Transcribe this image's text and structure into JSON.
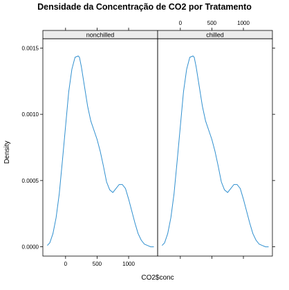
{
  "chart_data": {
    "type": "line",
    "title": "Densidade da Concentração de CO2 por Tratamento",
    "xlabel": "CO2$conc",
    "ylabel": "Density",
    "xlim": [
      -360,
      1460
    ],
    "ylim": [
      -7e-05,
      0.00157
    ],
    "x_ticks": [
      0,
      500,
      1000
    ],
    "y_ticks": [
      0.0,
      0.0005,
      0.001,
      0.0015
    ],
    "y_tick_labels": [
      "0.0000",
      "0.0005",
      "0.0010",
      "0.0015"
    ],
    "line_color": "#2f8fcf",
    "panels": [
      {
        "strip_label": "nonchilled",
        "x": [
          -290,
          -250,
          -200,
          -150,
          -100,
          -50,
          0,
          50,
          100,
          150,
          200,
          220,
          250,
          300,
          350,
          400,
          450,
          500,
          550,
          600,
          650,
          700,
          750,
          800,
          850,
          900,
          950,
          1000,
          1050,
          1100,
          1150,
          1200,
          1250,
          1300,
          1350,
          1400
        ],
        "y": [
          1e-05,
          3e-05,
          0.0001,
          0.00022,
          0.0004,
          0.00065,
          0.00091,
          0.00117,
          0.00134,
          0.00143,
          0.00144,
          0.00143,
          0.00136,
          0.00121,
          0.00106,
          0.00095,
          0.00088,
          0.00081,
          0.00072,
          0.00061,
          0.00049,
          0.00043,
          0.00041,
          0.00044,
          0.00047,
          0.00047,
          0.00044,
          0.00036,
          0.00027,
          0.00018,
          0.0001,
          5e-05,
          2e-05,
          1e-05,
          0.0,
          0.0
        ]
      },
      {
        "strip_label": "chilled",
        "x": [
          -290,
          -250,
          -200,
          -150,
          -100,
          -50,
          0,
          50,
          100,
          150,
          200,
          220,
          250,
          300,
          350,
          400,
          450,
          500,
          550,
          600,
          650,
          700,
          750,
          800,
          850,
          900,
          950,
          1000,
          1050,
          1100,
          1150,
          1200,
          1250,
          1300,
          1350,
          1400
        ],
        "y": [
          1e-05,
          3e-05,
          0.0001,
          0.00022,
          0.0004,
          0.00065,
          0.00091,
          0.00117,
          0.00134,
          0.00143,
          0.00144,
          0.00143,
          0.00136,
          0.00121,
          0.00106,
          0.00095,
          0.00088,
          0.00081,
          0.00072,
          0.00061,
          0.00049,
          0.00043,
          0.00041,
          0.00044,
          0.00047,
          0.00047,
          0.00044,
          0.00036,
          0.00027,
          0.00018,
          0.0001,
          5e-05,
          2e-05,
          1e-05,
          0.0,
          0.0
        ]
      }
    ],
    "grid": false,
    "legend": "none"
  }
}
